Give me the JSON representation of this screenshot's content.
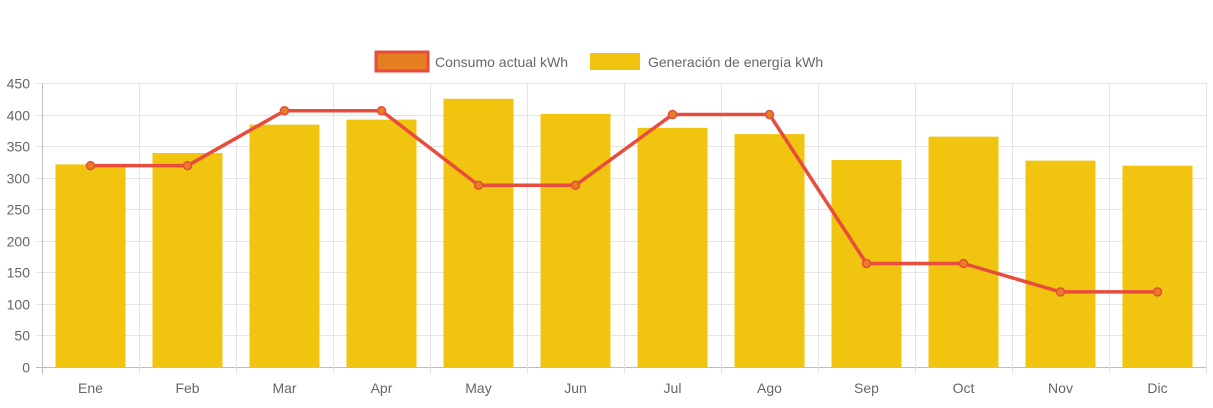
{
  "chart_data": {
    "type": "bar",
    "title": "",
    "xlabel": "",
    "ylabel": "",
    "categories": [
      "Ene",
      "Feb",
      "Mar",
      "Apr",
      "May",
      "Jun",
      "Jul",
      "Ago",
      "Sep",
      "Oct",
      "Nov",
      "Dic"
    ],
    "ylim": [
      0,
      450
    ],
    "yticks": [
      0,
      50,
      100,
      150,
      200,
      250,
      300,
      350,
      400,
      450
    ],
    "ytick_labels": [
      "0",
      "50",
      "100",
      "150",
      "200",
      "250",
      "300",
      "350",
      "400",
      "450"
    ],
    "grid": true,
    "legend_position": "top-center",
    "series": [
      {
        "name": "Consumo actual kWh",
        "type": "line",
        "color": "#e74c3c",
        "fill_color": "#e67e22",
        "values": [
          319,
          319,
          406,
          406,
          288,
          288,
          400,
          400,
          164,
          164,
          119,
          119
        ]
      },
      {
        "name": "Generación de energía kWh",
        "type": "bar",
        "color": "#f1c40f",
        "values": [
          321,
          339,
          384,
          392,
          425,
          401,
          379,
          369,
          328,
          365,
          327,
          319
        ]
      }
    ]
  }
}
